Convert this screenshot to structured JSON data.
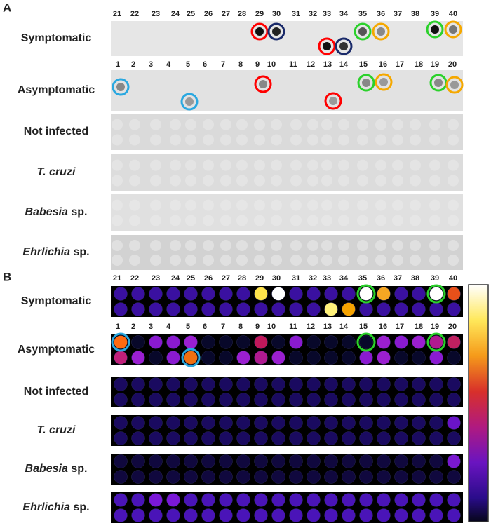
{
  "panel_a": {
    "label": "A",
    "top_numbers": [
      21,
      22,
      23,
      24,
      25,
      26,
      27,
      28,
      29,
      30,
      31,
      32,
      33,
      34,
      35,
      36,
      37,
      38,
      39,
      40
    ],
    "bottom_numbers": [
      1,
      2,
      3,
      4,
      5,
      6,
      7,
      8,
      9,
      10,
      11,
      12,
      13,
      14,
      15,
      16,
      17,
      18,
      19,
      20
    ],
    "rows": [
      {
        "plain": "Symptomatic"
      },
      {
        "plain": "Asymptomatic"
      },
      {
        "plain": "Not infected"
      },
      {
        "italic": "T. cruzi"
      },
      {
        "italic": "Babesia",
        "plain": "sp."
      },
      {
        "italic": "Ehrlichia",
        "plain": "sp."
      }
    ]
  },
  "panel_b": {
    "label": "B",
    "top_numbers": [
      21,
      22,
      23,
      24,
      25,
      26,
      27,
      28,
      29,
      30,
      31,
      32,
      33,
      34,
      35,
      36,
      37,
      38,
      39,
      40
    ],
    "bottom_numbers": [
      1,
      2,
      3,
      4,
      5,
      6,
      7,
      8,
      9,
      10,
      11,
      12,
      13,
      14,
      15,
      16,
      17,
      18,
      19,
      20
    ],
    "rows": [
      {
        "plain": "Symptomatic"
      },
      {
        "plain": "Asymptomatic"
      },
      {
        "plain": "Not infected"
      },
      {
        "italic": "T. cruzi"
      },
      {
        "italic": "Babesia",
        "plain": "sp."
      },
      {
        "italic": "Ehrlichia",
        "plain": "sp."
      }
    ]
  }
}
